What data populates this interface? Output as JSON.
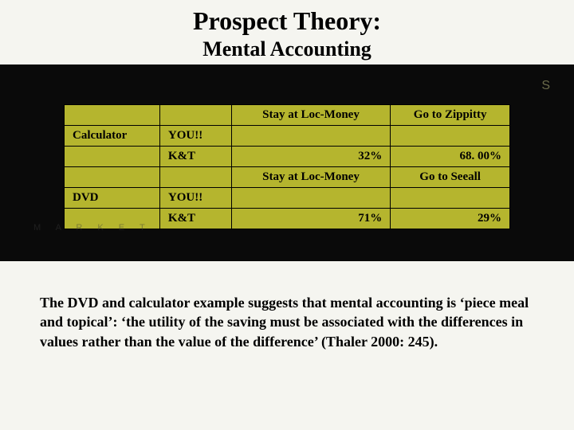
{
  "title": {
    "main": "Prospect Theory:",
    "sub": "Mental Accounting"
  },
  "table": {
    "background_color": "#b5b52e",
    "border_color": "#000000",
    "text_color": "#000000",
    "font_size": 15,
    "columns": [
      "item",
      "who",
      "stay",
      "go"
    ],
    "rows": [
      {
        "item": "",
        "who": "",
        "stay": "Stay at Loc-Money",
        "go": "Go to Zippitty",
        "stay_align": "center",
        "go_align": "center"
      },
      {
        "item": "Calculator",
        "who": "YOU!!",
        "stay": "",
        "go": ""
      },
      {
        "item": "",
        "who": "K&T",
        "stay": "32%",
        "go": "68. 00%",
        "stay_align": "right",
        "go_align": "right"
      },
      {
        "item": "",
        "who": "",
        "stay": "Stay at Loc-Money",
        "go": "Go to Seeall",
        "stay_align": "center",
        "go_align": "center"
      },
      {
        "item": "DVD",
        "who": "YOU!!",
        "stay": "",
        "go": ""
      },
      {
        "item": "",
        "who": "K&T",
        "stay": "71%",
        "go": "29%",
        "stay_align": "right",
        "go_align": "right"
      }
    ]
  },
  "watermark_text": "M A R K E T",
  "caption": "The DVD and calculator example suggests that mental accounting is ‘piece meal and topical’: ‘the utility of the saving must be associated with the differences in values rather than the value of the difference’ (Thaler 2000: 245).",
  "colors": {
    "page_bg": "#f5f5f0",
    "band_bg": "#0a0a0a",
    "cell_bg": "#b5b52e"
  }
}
